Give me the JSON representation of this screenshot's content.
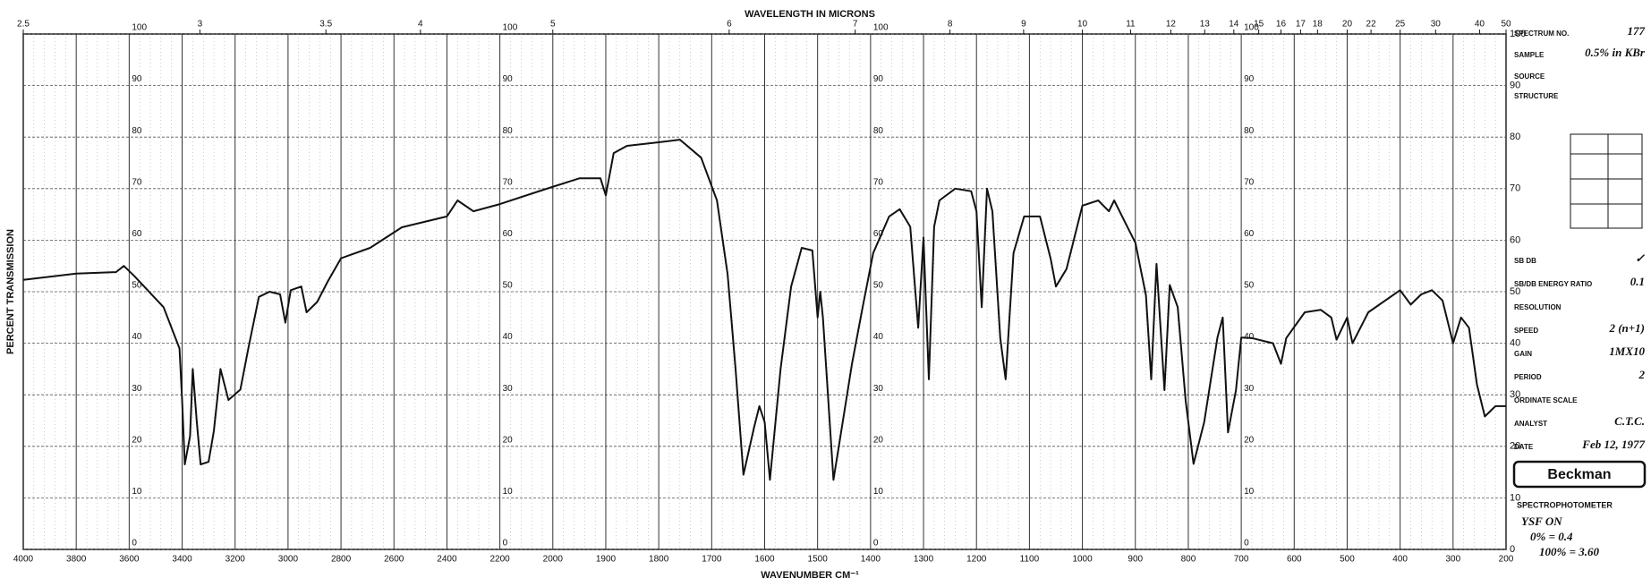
{
  "chart_data": {
    "type": "line",
    "title": "WAVELENGTH IN MICRONS",
    "xlabel": "WAVENUMBER CM⁻¹",
    "ylabel": "PERCENT TRANSMISSION",
    "color": "#111111",
    "grid": true,
    "xlim": [
      4000,
      200
    ],
    "xticks": [
      4000,
      3800,
      3600,
      3400,
      3200,
      3000,
      2800,
      2600,
      2400,
      2200,
      2000,
      1900,
      1800,
      1700,
      1600,
      1500,
      1400,
      1300,
      1200,
      1100,
      1000,
      900,
      800,
      700,
      600,
      500,
      400,
      300,
      200
    ],
    "x2ticks": [
      {
        "value": 4000,
        "label": "2.5"
      },
      {
        "value": 3333,
        "label": "3"
      },
      {
        "value": 2857,
        "label": "3.5"
      },
      {
        "value": 2500,
        "label": "4"
      },
      {
        "value": 2000,
        "label": "5"
      },
      {
        "value": 1667,
        "label": "6"
      },
      {
        "value": 1429,
        "label": "7"
      },
      {
        "value": 1250,
        "label": "8"
      },
      {
        "value": 1111,
        "label": "9"
      },
      {
        "value": 1000,
        "label": "10"
      },
      {
        "value": 909,
        "label": "11"
      },
      {
        "value": 833,
        "label": "12"
      },
      {
        "value": 769,
        "label": "13"
      },
      {
        "value": 714,
        "label": "14"
      },
      {
        "value": 667,
        "label": "15"
      },
      {
        "value": 625,
        "label": "16"
      },
      {
        "value": 588,
        "label": "17"
      },
      {
        "value": 556,
        "label": "18"
      },
      {
        "value": 500,
        "label": "20"
      },
      {
        "value": 455,
        "label": "22"
      },
      {
        "value": 400,
        "label": "25"
      },
      {
        "value": 333,
        "label": "30"
      },
      {
        "value": 250,
        "label": "40"
      },
      {
        "value": 200,
        "label": "50"
      }
    ],
    "ylim": [
      0,
      100
    ],
    "yticks": [
      0,
      10,
      20,
      30,
      40,
      50,
      60,
      70,
      80,
      90,
      100
    ],
    "x": [
      4000,
      3800,
      3650,
      3620,
      3580,
      3470,
      3410,
      3400,
      3390,
      3370,
      3360,
      3345,
      3330,
      3300,
      3280,
      3255,
      3225,
      3180,
      3150,
      3110,
      3070,
      3030,
      3010,
      2990,
      2950,
      2930,
      2890,
      2850,
      2800,
      2690,
      2570,
      2400,
      2360,
      2300,
      2200,
      2040,
      1950,
      1910,
      1900,
      1885,
      1860,
      1800,
      1760,
      1720,
      1690,
      1670,
      1655,
      1640,
      1620,
      1610,
      1600,
      1590,
      1570,
      1550,
      1530,
      1510,
      1500,
      1495,
      1490,
      1470,
      1460,
      1435,
      1415,
      1395,
      1365,
      1345,
      1325,
      1310,
      1300,
      1290,
      1280,
      1270,
      1240,
      1210,
      1200,
      1190,
      1180,
      1170,
      1155,
      1145,
      1130,
      1110,
      1080,
      1060,
      1050,
      1030,
      1000,
      970,
      950,
      940,
      920,
      900,
      880,
      870,
      860,
      845,
      835,
      820,
      805,
      790,
      770,
      745,
      735,
      725,
      710,
      700,
      680,
      640,
      625,
      615,
      580,
      550,
      530,
      520,
      500,
      490,
      460,
      400,
      380,
      360,
      340,
      320,
      300,
      285,
      270,
      255,
      240,
      220,
      200
    ],
    "values": [
      52.3,
      53.5,
      53.8,
      55,
      53,
      47,
      39,
      29,
      16.5,
      22,
      35,
      25,
      16.5,
      17,
      23,
      35,
      29,
      31,
      39,
      49,
      50,
      49.5,
      44,
      50.3,
      51,
      46,
      48,
      52,
      56.5,
      58.5,
      62.5,
      64.6,
      67.7,
      65.6,
      67,
      69.7,
      72,
      72,
      68.7,
      76.9,
      78.3,
      79,
      79.5,
      76,
      67.7,
      53.4,
      35,
      14.5,
      23.7,
      27.8,
      24.7,
      13.5,
      35,
      51,
      58.5,
      58,
      45,
      50,
      45,
      13.5,
      20,
      36,
      47,
      57.5,
      64.6,
      66,
      62.6,
      43,
      60.5,
      33,
      62.6,
      67.7,
      70,
      69.5,
      65.6,
      47,
      70,
      65.6,
      41,
      33,
      57.5,
      64.6,
      64.6,
      56.4,
      51,
      54.4,
      66.7,
      67.7,
      65.6,
      67.7,
      63.6,
      59.5,
      49.3,
      33,
      55.4,
      30.9,
      51.3,
      47,
      28.8,
      16.6,
      24.7,
      41.1,
      45,
      22.7,
      30.9,
      41.1,
      41,
      40,
      36,
      41,
      46,
      46.5,
      45,
      40.7,
      45,
      40,
      46,
      50.3,
      47.5,
      49.5,
      50.3,
      48.3,
      40,
      45,
      43,
      32,
      25.8,
      27.8,
      27.8
    ]
  },
  "info_panel": {
    "fields": [
      {
        "label": "SPECTRUM NO.",
        "value": "177"
      },
      {
        "label": "SAMPLE",
        "value": "0.5% in KBr"
      },
      {
        "label": "SOURCE"
      },
      {
        "label": "STRUCTURE"
      },
      {
        "label": "SB      DB",
        "value": "✓"
      },
      {
        "label": "SB/DB ENERGY RATIO",
        "value": "0.1"
      },
      {
        "label": "RESOLUTION"
      },
      {
        "label": "SPEED",
        "value": "2 (n+1)"
      },
      {
        "label": "GAIN",
        "value": "1MX10"
      },
      {
        "label": "PERIOD",
        "value": "2"
      },
      {
        "label": "ORDINATE SCALE"
      },
      {
        "label": "ANALYST",
        "value": "C.T.C."
      },
      {
        "label": "DATE",
        "value": "Feb 12, 1977"
      }
    ],
    "brand": "Beckman",
    "instrument": "SPECTROPHOTOMETER",
    "notes": [
      "YSF ON",
      "0% = 0.4",
      "100% = 3.60"
    ]
  }
}
